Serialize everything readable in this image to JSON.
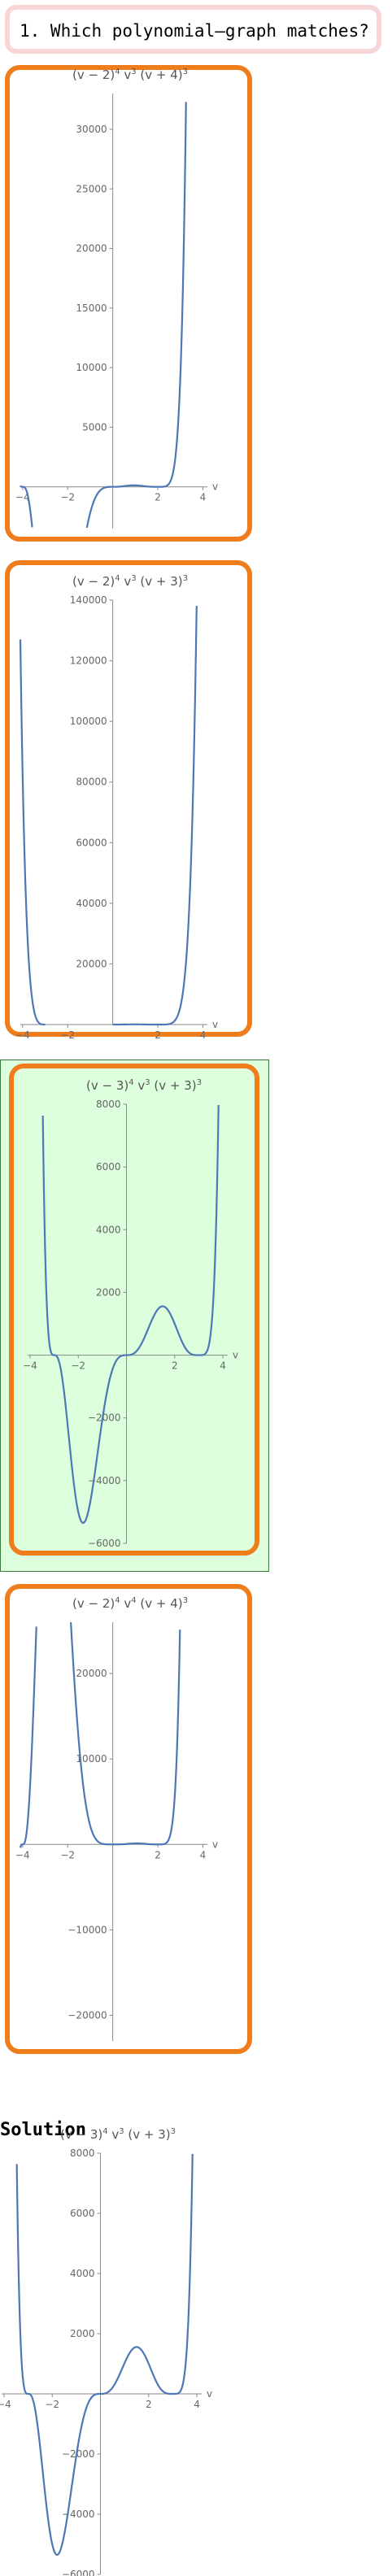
{
  "question": {
    "text": "1. Which polynomial–graph matches?"
  },
  "solution": {
    "label": "Solution"
  },
  "chart_data": [
    {
      "type": "line",
      "role": "option",
      "selected": false,
      "title_parts": [
        "(v − 2)",
        "4",
        " v",
        "3",
        " (v + 4)",
        "3"
      ],
      "roots": [
        [
          2,
          4
        ],
        [
          0,
          3
        ],
        [
          -4,
          3
        ]
      ],
      "xlabel": "v",
      "xlim": [
        -4.1,
        4.2
      ],
      "ylim": [
        -3500,
        33000
      ],
      "xticks": [
        -4,
        -2,
        2,
        4
      ],
      "xtick_labels": [
        "−4",
        "−2",
        "2",
        "4"
      ],
      "yticks": [
        5000,
        10000,
        15000,
        20000,
        25000,
        30000
      ],
      "ytick_labels": [
        "5000",
        "10000",
        "15000",
        "20000",
        "25000",
        "30000"
      ]
    },
    {
      "type": "line",
      "role": "option",
      "selected": false,
      "title_parts": [
        "(v − 2)",
        "4",
        " v",
        "3",
        " (v + 3)",
        "3"
      ],
      "roots": [
        [
          2,
          4
        ],
        [
          0,
          3
        ],
        [
          -3,
          3
        ]
      ],
      "xlabel": "v",
      "xlim": [
        -4.1,
        4.2
      ],
      "ylim": [
        0,
        140000
      ],
      "xticks": [
        -4,
        -2,
        2,
        4
      ],
      "xtick_labels": [
        "−4",
        "−2",
        "2",
        "4"
      ],
      "yticks": [
        20000,
        40000,
        60000,
        80000,
        100000,
        120000,
        140000
      ],
      "ytick_labels": [
        "20000",
        "40000",
        "60000",
        "80000",
        "100000",
        "120000",
        "140000"
      ]
    },
    {
      "type": "line",
      "role": "option",
      "selected": true,
      "title_parts": [
        "(v − 3)",
        "4",
        " v",
        "3",
        " (v + 3)",
        "3"
      ],
      "roots": [
        [
          3,
          4
        ],
        [
          0,
          3
        ],
        [
          -3,
          3
        ]
      ],
      "xlabel": "v",
      "xlim": [
        -4.1,
        4.2
      ],
      "ylim": [
        -6000,
        8000
      ],
      "xticks": [
        -4,
        -2,
        2,
        4
      ],
      "xtick_labels": [
        "−4",
        "−2",
        "2",
        "4"
      ],
      "yticks": [
        -6000,
        -4000,
        -2000,
        2000,
        4000,
        6000,
        8000
      ],
      "ytick_labels": [
        "−6000",
        "−4000",
        "−2000",
        "2000",
        "4000",
        "6000",
        "8000"
      ]
    },
    {
      "type": "line",
      "role": "option",
      "selected": false,
      "title_parts": [
        "(v − 2)",
        "4",
        " v",
        "4",
        " (v + 4)",
        "3"
      ],
      "roots": [
        [
          2,
          4
        ],
        [
          0,
          4
        ],
        [
          -4,
          3
        ]
      ],
      "xlabel": "v",
      "xlim": [
        -4.1,
        4.2
      ],
      "ylim": [
        -23000,
        26000
      ],
      "xticks": [
        -4,
        -2,
        2,
        4
      ],
      "xtick_labels": [
        "−4",
        "−2",
        "2",
        "4"
      ],
      "yticks": [
        -20000,
        -10000,
        10000,
        20000
      ],
      "ytick_labels": [
        "−20000",
        "−10000",
        "10000",
        "20000"
      ]
    },
    {
      "type": "line",
      "role": "solution",
      "selected": false,
      "title_parts": [
        "(v − 3)",
        "4",
        " v",
        "3",
        " (v + 3)",
        "3"
      ],
      "roots": [
        [
          3,
          4
        ],
        [
          0,
          3
        ],
        [
          -3,
          3
        ]
      ],
      "xlabel": "v",
      "xlim": [
        -4.1,
        4.2
      ],
      "ylim": [
        -6000,
        8000
      ],
      "xticks": [
        -4,
        -2,
        2,
        4
      ],
      "xtick_labels": [
        "−4",
        "−2",
        "2",
        "4"
      ],
      "yticks": [
        -6000,
        -4000,
        -2000,
        2000,
        4000,
        6000,
        8000
      ],
      "ytick_labels": [
        "−6000",
        "−4000",
        "−2000",
        "2000",
        "4000",
        "6000",
        "8000"
      ]
    }
  ]
}
